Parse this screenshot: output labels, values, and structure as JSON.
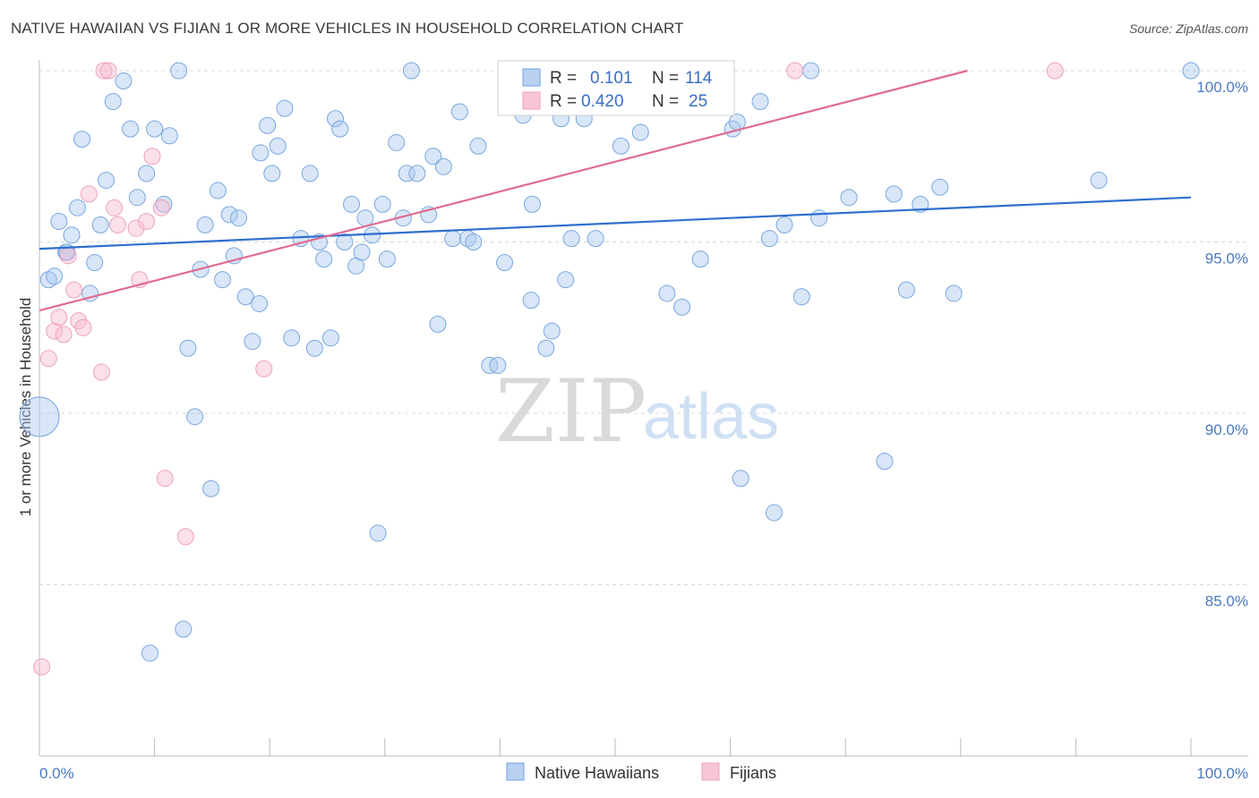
{
  "title": "NATIVE HAWAIIAN VS FIJIAN 1 OR MORE VEHICLES IN HOUSEHOLD CORRELATION CHART",
  "source": "Source: ZipAtlas.com",
  "watermark": {
    "zip": "ZIP",
    "atlas": "atlas"
  },
  "colors": {
    "blue": "#6ea1e0",
    "blue_line": "#2f6fcf",
    "pink": "#f0a0ba",
    "pink_line": "#e06b93",
    "grid": "#d8d8d8",
    "tick_text": "#4a78c0"
  },
  "legend": {
    "row1": {
      "r_label": "R =",
      "r_value": "0.101",
      "n_label": "N =",
      "n_value": "114"
    },
    "row2": {
      "r_label": "R =",
      "r_value": "0.420",
      "n_label": "N =",
      "n_value": "25"
    }
  },
  "bottom_legend": {
    "series1": "Native Hawaiians",
    "series2": "Fijians"
  },
  "chart_data": {
    "type": "scatter",
    "title": "NATIVE HAWAIIAN VS FIJIAN 1 OR MORE VEHICLES IN HOUSEHOLD CORRELATION CHART",
    "xlabel": "",
    "ylabel": "1 or more Vehicles in Household",
    "xlim": [
      0,
      100
    ],
    "ylim": [
      80.5,
      100.5
    ],
    "x_tick_labels": [
      "0.0%",
      "100.0%"
    ],
    "y_tick_labels": [
      "100.0%",
      "95.0%",
      "90.0%",
      "85.0%"
    ],
    "y_ticks": [
      100,
      95,
      90,
      85
    ],
    "grid": true,
    "legend_placement": "top-center",
    "series": [
      {
        "name": "Native Hawaiians",
        "color": "#6ea1e0",
        "trend": {
          "x": [
            0,
            100
          ],
          "y": [
            94.8,
            96.3
          ]
        },
        "points": [
          [
            0.0,
            89.9
          ],
          [
            0.8,
            93.9
          ],
          [
            1.3,
            94.0
          ],
          [
            1.7,
            95.6
          ],
          [
            2.3,
            94.7
          ],
          [
            2.8,
            95.2
          ],
          [
            3.3,
            96.0
          ],
          [
            3.7,
            98.0
          ],
          [
            4.4,
            93.5
          ],
          [
            4.8,
            94.4
          ],
          [
            5.3,
            95.5
          ],
          [
            5.8,
            96.8
          ],
          [
            6.4,
            99.1
          ],
          [
            7.3,
            99.7
          ],
          [
            7.9,
            98.3
          ],
          [
            8.5,
            96.3
          ],
          [
            9.3,
            97.0
          ],
          [
            10.0,
            98.3
          ],
          [
            10.8,
            96.1
          ],
          [
            11.3,
            98.1
          ],
          [
            12.1,
            100.0
          ],
          [
            12.9,
            91.9
          ],
          [
            13.5,
            89.9
          ],
          [
            14.0,
            94.2
          ],
          [
            14.4,
            95.5
          ],
          [
            14.9,
            87.8
          ],
          [
            15.5,
            96.5
          ],
          [
            15.9,
            93.9
          ],
          [
            16.5,
            95.8
          ],
          [
            16.9,
            94.6
          ],
          [
            17.3,
            95.7
          ],
          [
            17.9,
            93.4
          ],
          [
            18.5,
            92.1
          ],
          [
            19.1,
            93.2
          ],
          [
            19.2,
            97.6
          ],
          [
            19.8,
            98.4
          ],
          [
            20.2,
            97.0
          ],
          [
            20.7,
            97.8
          ],
          [
            21.3,
            98.9
          ],
          [
            21.9,
            92.2
          ],
          [
            22.7,
            95.1
          ],
          [
            23.5,
            97.0
          ],
          [
            23.9,
            91.9
          ],
          [
            24.3,
            95.0
          ],
          [
            24.7,
            94.5
          ],
          [
            25.3,
            92.2
          ],
          [
            25.7,
            98.6
          ],
          [
            26.1,
            98.3
          ],
          [
            26.5,
            95.0
          ],
          [
            27.1,
            96.1
          ],
          [
            27.5,
            94.3
          ],
          [
            28.0,
            94.7
          ],
          [
            28.3,
            95.7
          ],
          [
            28.9,
            95.2
          ],
          [
            29.4,
            86.5
          ],
          [
            29.8,
            96.1
          ],
          [
            30.2,
            94.5
          ],
          [
            31.0,
            97.9
          ],
          [
            31.6,
            95.7
          ],
          [
            31.9,
            97.0
          ],
          [
            32.3,
            100.0
          ],
          [
            32.8,
            97.0
          ],
          [
            33.8,
            95.8
          ],
          [
            34.2,
            97.5
          ],
          [
            34.6,
            92.6
          ],
          [
            35.1,
            97.2
          ],
          [
            35.9,
            95.1
          ],
          [
            36.5,
            98.8
          ],
          [
            37.2,
            95.1
          ],
          [
            37.7,
            95.0
          ],
          [
            38.1,
            97.8
          ],
          [
            39.1,
            91.4
          ],
          [
            39.8,
            91.4
          ],
          [
            40.4,
            94.4
          ],
          [
            41.1,
            100.0
          ],
          [
            42.0,
            98.7
          ],
          [
            42.3,
            99.3
          ],
          [
            42.7,
            93.3
          ],
          [
            42.8,
            96.1
          ],
          [
            44.0,
            91.9
          ],
          [
            44.5,
            92.4
          ],
          [
            45.3,
            98.6
          ],
          [
            45.7,
            93.9
          ],
          [
            46.2,
            95.1
          ],
          [
            47.3,
            98.6
          ],
          [
            48.3,
            95.1
          ],
          [
            50.5,
            97.8
          ],
          [
            52.2,
            98.2
          ],
          [
            54.5,
            93.5
          ],
          [
            55.8,
            93.1
          ],
          [
            57.4,
            94.5
          ],
          [
            59.0,
            100.0
          ],
          [
            60.2,
            98.3
          ],
          [
            60.6,
            98.5
          ],
          [
            60.9,
            88.1
          ],
          [
            62.6,
            99.1
          ],
          [
            63.4,
            95.1
          ],
          [
            63.8,
            87.1
          ],
          [
            64.7,
            95.5
          ],
          [
            66.2,
            93.4
          ],
          [
            67.0,
            100.0
          ],
          [
            67.7,
            95.7
          ],
          [
            70.3,
            96.3
          ],
          [
            73.4,
            88.6
          ],
          [
            74.2,
            96.4
          ],
          [
            75.3,
            93.6
          ],
          [
            76.5,
            96.1
          ],
          [
            78.2,
            96.6
          ],
          [
            79.4,
            93.5
          ],
          [
            92.0,
            96.8
          ],
          [
            100.0,
            100.0
          ],
          [
            9.6,
            83.0
          ],
          [
            12.5,
            83.7
          ],
          [
            2.4,
            94.7
          ]
        ]
      },
      {
        "name": "Fijians",
        "color": "#f0a0ba",
        "trend": {
          "x": [
            0,
            80.6
          ],
          "y": [
            93.0,
            100.0
          ]
        },
        "points": [
          [
            0.2,
            82.6
          ],
          [
            0.8,
            91.6
          ],
          [
            1.3,
            92.4
          ],
          [
            1.7,
            92.8
          ],
          [
            2.1,
            92.3
          ],
          [
            2.5,
            94.6
          ],
          [
            3.0,
            93.6
          ],
          [
            3.4,
            92.7
          ],
          [
            3.8,
            92.5
          ],
          [
            4.3,
            96.4
          ],
          [
            5.4,
            91.2
          ],
          [
            5.6,
            100.0
          ],
          [
            6.0,
            100.0
          ],
          [
            6.5,
            96.0
          ],
          [
            6.8,
            95.5
          ],
          [
            8.4,
            95.4
          ],
          [
            8.7,
            93.9
          ],
          [
            9.3,
            95.6
          ],
          [
            9.8,
            97.5
          ],
          [
            10.6,
            96.0
          ],
          [
            10.9,
            88.1
          ],
          [
            12.7,
            86.4
          ],
          [
            19.5,
            91.3
          ],
          [
            65.6,
            100.0
          ],
          [
            88.2,
            100.0
          ]
        ]
      }
    ]
  }
}
